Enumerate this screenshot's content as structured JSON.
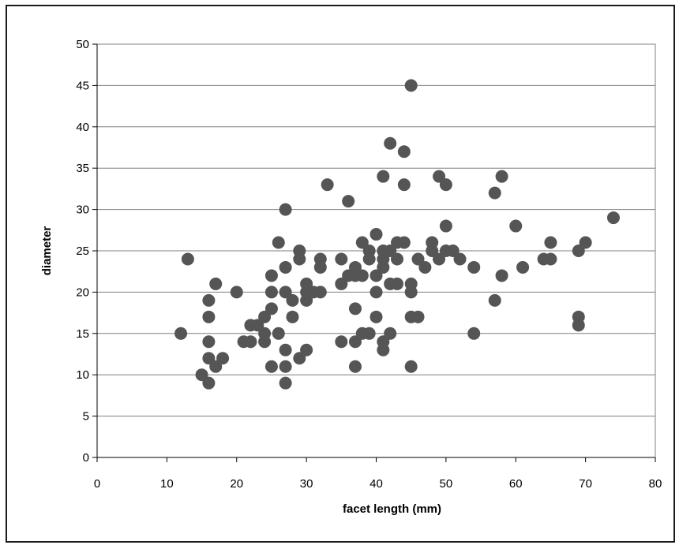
{
  "chart_data": {
    "type": "scatter",
    "title": "",
    "xlabel": "facet length (mm)",
    "ylabel": "diameter",
    "xlim": [
      0,
      80
    ],
    "ylim": [
      0,
      50
    ],
    "x_ticks": [
      "0",
      "10",
      "20",
      "30",
      "40",
      "50",
      "60",
      "70",
      "80"
    ],
    "y_ticks": [
      "0",
      "5",
      "10",
      "15",
      "20",
      "25",
      "30",
      "35",
      "40",
      "45",
      "50"
    ],
    "grid": "horizontal",
    "legend": "none",
    "marker_color": "#555555",
    "grid_color": "#7f7f7f",
    "points": [
      [
        12,
        15
      ],
      [
        13,
        24
      ],
      [
        15,
        10
      ],
      [
        16,
        9
      ],
      [
        16,
        12
      ],
      [
        16,
        14
      ],
      [
        16,
        17
      ],
      [
        16,
        19
      ],
      [
        17,
        11
      ],
      [
        17,
        21
      ],
      [
        18,
        12
      ],
      [
        20,
        20
      ],
      [
        21,
        14
      ],
      [
        22,
        14
      ],
      [
        22,
        16
      ],
      [
        23,
        16
      ],
      [
        24,
        14
      ],
      [
        24,
        15
      ],
      [
        24,
        17
      ],
      [
        25,
        11
      ],
      [
        25,
        18
      ],
      [
        25,
        20
      ],
      [
        25,
        22
      ],
      [
        26,
        15
      ],
      [
        26,
        26
      ],
      [
        27,
        9
      ],
      [
        27,
        11
      ],
      [
        27,
        13
      ],
      [
        27,
        20
      ],
      [
        27,
        23
      ],
      [
        27,
        30
      ],
      [
        28,
        17
      ],
      [
        28,
        19
      ],
      [
        29,
        12
      ],
      [
        29,
        24
      ],
      [
        29,
        25
      ],
      [
        30,
        13
      ],
      [
        30,
        19
      ],
      [
        30,
        20
      ],
      [
        30,
        21
      ],
      [
        31,
        20
      ],
      [
        32,
        20
      ],
      [
        32,
        23
      ],
      [
        32,
        24
      ],
      [
        33,
        33
      ],
      [
        35,
        14
      ],
      [
        35,
        21
      ],
      [
        35,
        24
      ],
      [
        36,
        22
      ],
      [
        36,
        31
      ],
      [
        37,
        11
      ],
      [
        37,
        14
      ],
      [
        37,
        18
      ],
      [
        37,
        22
      ],
      [
        37,
        23
      ],
      [
        38,
        15
      ],
      [
        38,
        22
      ],
      [
        38,
        26
      ],
      [
        39,
        15
      ],
      [
        39,
        24
      ],
      [
        39,
        25
      ],
      [
        40,
        17
      ],
      [
        40,
        20
      ],
      [
        40,
        22
      ],
      [
        40,
        27
      ],
      [
        41,
        13
      ],
      [
        41,
        14
      ],
      [
        41,
        23
      ],
      [
        41,
        24
      ],
      [
        41,
        25
      ],
      [
        41,
        34
      ],
      [
        42,
        15
      ],
      [
        42,
        21
      ],
      [
        42,
        25
      ],
      [
        42,
        38
      ],
      [
        43,
        21
      ],
      [
        43,
        24
      ],
      [
        43,
        26
      ],
      [
        44,
        26
      ],
      [
        44,
        33
      ],
      [
        44,
        37
      ],
      [
        45,
        11
      ],
      [
        45,
        17
      ],
      [
        45,
        20
      ],
      [
        45,
        21
      ],
      [
        45,
        45
      ],
      [
        46,
        17
      ],
      [
        46,
        24
      ],
      [
        47,
        23
      ],
      [
        48,
        25
      ],
      [
        48,
        26
      ],
      [
        49,
        24
      ],
      [
        49,
        34
      ],
      [
        50,
        25
      ],
      [
        50,
        28
      ],
      [
        50,
        33
      ],
      [
        51,
        25
      ],
      [
        52,
        24
      ],
      [
        54,
        15
      ],
      [
        54,
        23
      ],
      [
        57,
        19
      ],
      [
        57,
        32
      ],
      [
        58,
        22
      ],
      [
        58,
        34
      ],
      [
        60,
        28
      ],
      [
        61,
        23
      ],
      [
        64,
        24
      ],
      [
        65,
        24
      ],
      [
        65,
        26
      ],
      [
        69,
        16
      ],
      [
        69,
        17
      ],
      [
        69,
        25
      ],
      [
        70,
        26
      ],
      [
        74,
        29
      ]
    ]
  }
}
